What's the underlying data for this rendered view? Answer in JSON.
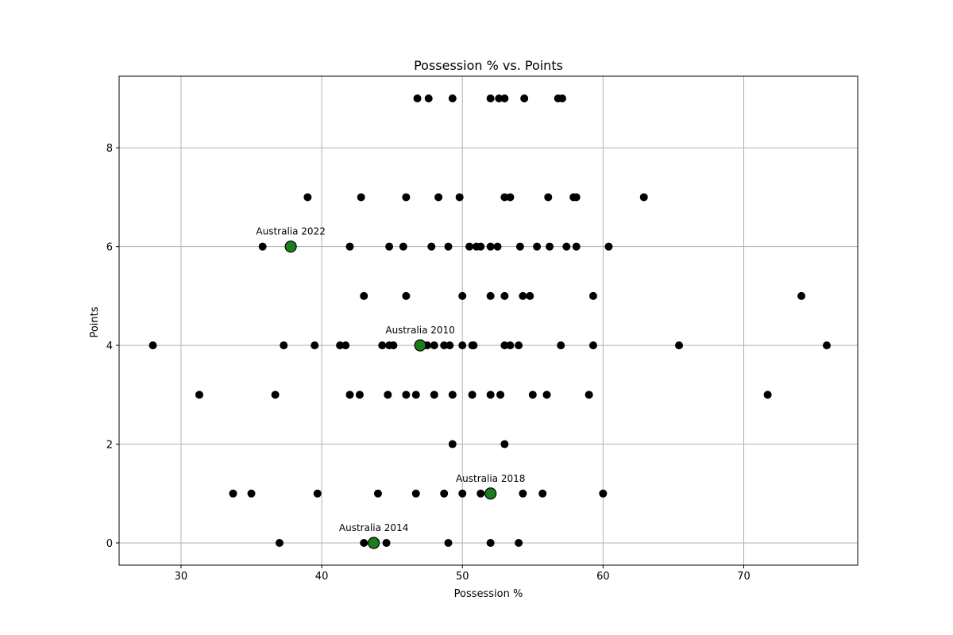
{
  "chart_data": {
    "type": "scatter",
    "title": "Possession % vs. Points",
    "xlabel": "Possession %",
    "ylabel": "Points",
    "xlim": [
      25.6,
      78.1
    ],
    "ylim": [
      -0.45,
      9.45
    ],
    "xticks": [
      30,
      40,
      50,
      60,
      70
    ],
    "yticks": [
      0,
      2,
      4,
      6,
      8
    ],
    "grid": true,
    "colors": {
      "base_points": "#000000",
      "highlight_points": "#1a7f1a",
      "highlight_edge": "#000000",
      "grid": "#b0b0b0"
    },
    "series": [
      {
        "points": [
          [
            46.8,
            9
          ],
          [
            47.6,
            9
          ],
          [
            49.3,
            9
          ],
          [
            52.0,
            9
          ],
          [
            52.6,
            9
          ],
          [
            53.0,
            9
          ],
          [
            54.4,
            9
          ],
          [
            56.8,
            9
          ],
          [
            57.1,
            9
          ],
          [
            39.0,
            7
          ],
          [
            42.8,
            7
          ],
          [
            46.0,
            7
          ],
          [
            48.3,
            7
          ],
          [
            49.8,
            7
          ],
          [
            53.0,
            7
          ],
          [
            53.4,
            7
          ],
          [
            56.1,
            7
          ],
          [
            57.9,
            7
          ],
          [
            58.1,
            7
          ],
          [
            62.9,
            7
          ],
          [
            35.8,
            6
          ],
          [
            42.0,
            6
          ],
          [
            44.8,
            6
          ],
          [
            45.8,
            6
          ],
          [
            47.8,
            6
          ],
          [
            49.0,
            6
          ],
          [
            50.5,
            6
          ],
          [
            51.0,
            6
          ],
          [
            51.3,
            6
          ],
          [
            52.0,
            6
          ],
          [
            52.5,
            6
          ],
          [
            54.1,
            6
          ],
          [
            55.3,
            6
          ],
          [
            56.2,
            6
          ],
          [
            57.4,
            6
          ],
          [
            58.1,
            6
          ],
          [
            60.4,
            6
          ],
          [
            43.0,
            5
          ],
          [
            46.0,
            5
          ],
          [
            50.0,
            5
          ],
          [
            52.0,
            5
          ],
          [
            53.0,
            5
          ],
          [
            54.3,
            5
          ],
          [
            54.8,
            5
          ],
          [
            59.3,
            5
          ],
          [
            74.1,
            5
          ],
          [
            28.0,
            4
          ],
          [
            37.3,
            4
          ],
          [
            39.5,
            4
          ],
          [
            41.3,
            4
          ],
          [
            41.7,
            4
          ],
          [
            44.3,
            4
          ],
          [
            44.8,
            4
          ],
          [
            45.1,
            4
          ],
          [
            47.5,
            4
          ],
          [
            48.0,
            4
          ],
          [
            48.7,
            4
          ],
          [
            49.1,
            4
          ],
          [
            50.0,
            4
          ],
          [
            50.7,
            4
          ],
          [
            50.8,
            4
          ],
          [
            53.0,
            4
          ],
          [
            53.4,
            4
          ],
          [
            54.0,
            4
          ],
          [
            57.0,
            4
          ],
          [
            59.3,
            4
          ],
          [
            65.4,
            4
          ],
          [
            75.9,
            4
          ],
          [
            31.3,
            3
          ],
          [
            36.7,
            3
          ],
          [
            42.0,
            3
          ],
          [
            42.7,
            3
          ],
          [
            44.7,
            3
          ],
          [
            46.0,
            3
          ],
          [
            46.7,
            3
          ],
          [
            48.0,
            3
          ],
          [
            49.3,
            3
          ],
          [
            50.7,
            3
          ],
          [
            52.0,
            3
          ],
          [
            52.7,
            3
          ],
          [
            55.0,
            3
          ],
          [
            56.0,
            3
          ],
          [
            59.0,
            3
          ],
          [
            71.7,
            3
          ],
          [
            49.3,
            2
          ],
          [
            53.0,
            2
          ],
          [
            33.7,
            1
          ],
          [
            35.0,
            1
          ],
          [
            39.7,
            1
          ],
          [
            44.0,
            1
          ],
          [
            46.7,
            1
          ],
          [
            48.7,
            1
          ],
          [
            50.0,
            1
          ],
          [
            51.3,
            1
          ],
          [
            54.3,
            1
          ],
          [
            55.7,
            1
          ],
          [
            60.0,
            1
          ],
          [
            37.0,
            0
          ],
          [
            43.0,
            0
          ],
          [
            44.6,
            0
          ],
          [
            49.0,
            0
          ],
          [
            52.0,
            0
          ],
          [
            54.0,
            0
          ]
        ]
      },
      {
        "highlight": true,
        "points": [
          {
            "x": 37.8,
            "y": 6,
            "label": "Australia 2022"
          },
          {
            "x": 47.0,
            "y": 4,
            "label": "Australia 2010"
          },
          {
            "x": 52.0,
            "y": 1,
            "label": "Australia 2018"
          },
          {
            "x": 43.7,
            "y": 0,
            "label": "Australia 2014"
          }
        ]
      }
    ]
  }
}
